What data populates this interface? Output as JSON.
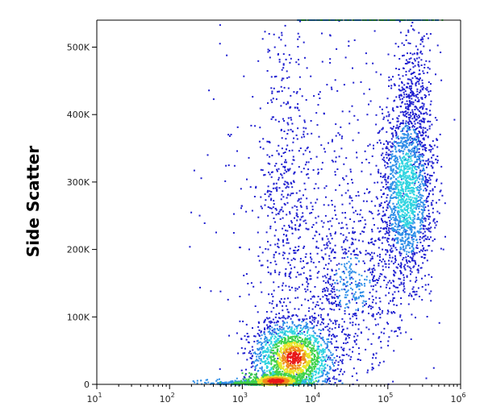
{
  "chart_data": {
    "type": "scatter",
    "subtype": "flow-cytometry density plot",
    "title": "",
    "xlabel": "",
    "ylabel": "Side Scatter",
    "x_scale": "log",
    "xlim": [
      10,
      1000000
    ],
    "ylim": [
      0,
      540000
    ],
    "x_ticks": [
      {
        "value": 10,
        "base": "10",
        "exp": "1"
      },
      {
        "value": 100,
        "base": "10",
        "exp": "2"
      },
      {
        "value": 1000,
        "base": "10",
        "exp": "3"
      },
      {
        "value": 10000,
        "base": "10",
        "exp": "4"
      },
      {
        "value": 100000,
        "base": "10",
        "exp": "5"
      },
      {
        "value": 1000000,
        "base": "10",
        "exp": "6"
      }
    ],
    "y_ticks": [
      {
        "value": 0,
        "label": "0"
      },
      {
        "value": 100000,
        "label": "100K"
      },
      {
        "value": 200000,
        "label": "200K"
      },
      {
        "value": 300000,
        "label": "300K"
      },
      {
        "value": 400000,
        "label": "400K"
      },
      {
        "value": 500000,
        "label": "500K"
      }
    ],
    "grid": false,
    "legend": "none",
    "colormap": [
      "#1f1fd0",
      "#2f8fe8",
      "#2fd4e0",
      "#3fd24a",
      "#e8e62a",
      "#f08a1a",
      "#e81818"
    ],
    "populations": [
      {
        "x_center": 3000,
        "y_center": 5000,
        "density": "very high",
        "color": "#e81818"
      },
      {
        "x_center": 5500,
        "y_center": 38000,
        "density": "high",
        "color": "#e8e62a"
      },
      {
        "x_center": 180000,
        "y_center": 290000,
        "density": "medium",
        "color": "#2fd4e0"
      },
      {
        "x_center": 3500,
        "y_center": 300000,
        "density": "low",
        "color": "#1f1fd0"
      }
    ]
  }
}
